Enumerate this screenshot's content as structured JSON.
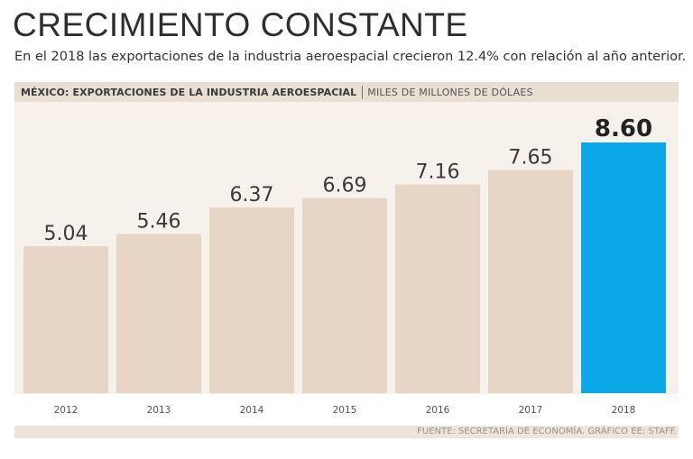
{
  "title": "CRECIMIENTO CONSTANTE",
  "subtitle": "En el 2018 las exportaciones de la industria aeroespacial crecieron 12.4% con relación al año anterior.",
  "header": {
    "main": "MÉXICO: EXPORTACIONES DE LA INDUSTRIA AEROESPACIAL",
    "unit": "MILES DE MILLONES DE DÓLAES"
  },
  "source": "FUENTE: SECRETARÍA DE ECONOMÍA. GRÁFICO EE: STAFF.",
  "colors": {
    "bar": "#e7d6c6",
    "highlight": "#0aa8e6",
    "label": "#3a3a3a",
    "highlight_label": "#222222",
    "tick": "#555555"
  },
  "chart_data": {
    "type": "bar",
    "title": "MÉXICO: EXPORTACIONES DE LA INDUSTRIA AEROESPACIAL",
    "ylabel": "MILES DE MILLONES DE DÓLAES",
    "xlabel": "",
    "categories": [
      "2012",
      "2013",
      "2014",
      "2015",
      "2016",
      "2017",
      "2018"
    ],
    "values": [
      5.04,
      5.46,
      6.37,
      6.69,
      7.16,
      7.65,
      8.6
    ],
    "value_labels": [
      "5.04",
      "5.46",
      "6.37",
      "6.69",
      "7.16",
      "7.65",
      "8.60"
    ],
    "highlight_index": 6,
    "ylim": [
      0,
      8.6
    ],
    "grid": false,
    "legend": "none"
  }
}
